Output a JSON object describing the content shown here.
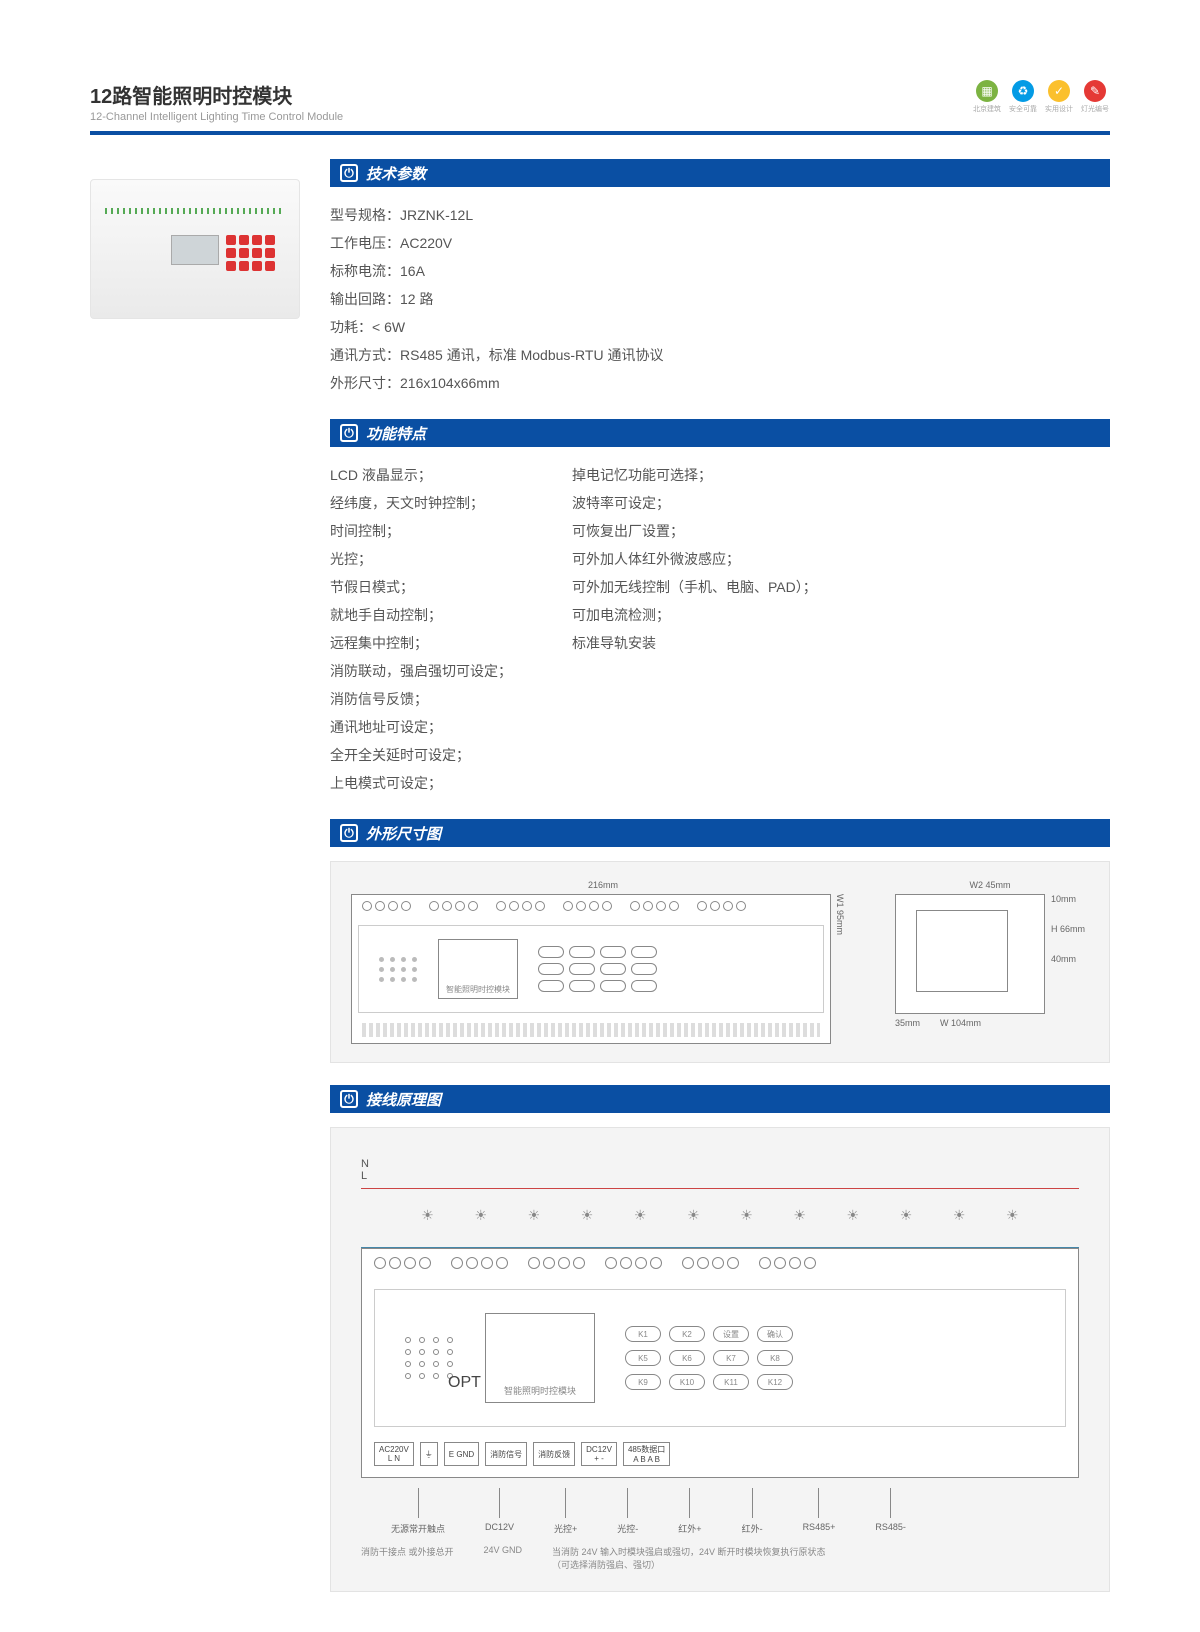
{
  "header": {
    "title_cn": "12路智能照明时控模块",
    "title_en": "12-Channel Intelligent Lighting Time Control Module",
    "badges": [
      {
        "color": "#7cb342",
        "icon": "▦",
        "label": "北京建筑"
      },
      {
        "color": "#039be5",
        "icon": "♻",
        "label": "安全可靠"
      },
      {
        "color": "#fbc02d",
        "icon": "✓",
        "label": "实用设计"
      },
      {
        "color": "#e53935",
        "icon": "✎",
        "label": "灯光编号"
      }
    ]
  },
  "sections": {
    "spec_title": "技术参数",
    "feat_title": "功能特点",
    "dim_title": "外形尺寸图",
    "wiring_title": "接线原理图"
  },
  "specs": [
    {
      "k": "型号规格：",
      "v": "JRZNK-12L"
    },
    {
      "k": "工作电压：",
      "v": "AC220V"
    },
    {
      "k": "标称电流：",
      "v": "16A"
    },
    {
      "k": "输出回路：",
      "v": "12 路"
    },
    {
      "k": "功耗：",
      "v": "< 6W"
    },
    {
      "k": "通讯方式：",
      "v": "RS485 通讯，标准 Modbus-RTU 通讯协议"
    },
    {
      "k": "外形尺寸：",
      "v": "216x104x66mm"
    }
  ],
  "features_left": [
    "LCD 液晶显示；",
    "经纬度，天文时钟控制；",
    "时间控制；",
    "光控；",
    "节假日模式；",
    "就地手自动控制；",
    "远程集中控制；",
    "消防联动，强启强切可设定；",
    "消防信号反馈；",
    "通讯地址可设定；",
    "全开全关延时可设定；",
    "上电模式可设定；"
  ],
  "features_right": [
    "掉电记忆功能可选择；",
    "波特率可设定；",
    "可恢复出厂设置；",
    "可外加人体红外微波感应；",
    "可外加无线控制（手机、电脑、PAD）；",
    "可加电流检测；",
    "标准导轨安装"
  ],
  "dimensions": {
    "width": "216mm",
    "height_side": "W1  95mm",
    "w2": "W2 45mm",
    "h": "H  66mm",
    "d1": "10mm",
    "d2": "40mm",
    "rail": "35mm",
    "depth": "W  104mm",
    "lcd_label": "智能照明时控模块"
  },
  "wiring": {
    "n": "N",
    "l": "L",
    "lcd_label": "智能照明时控模块",
    "key_labels": [
      "K1",
      "K2",
      "设置",
      "确认",
      "K5",
      "K6",
      "K7",
      "K8",
      "K9",
      "K10",
      "K11",
      "K12"
    ],
    "bottom_blocks": [
      {
        "t": "AC220V",
        "s": "L  N"
      },
      {
        "t": "⏚",
        "s": ""
      },
      {
        "t": "E GND",
        "s": ""
      },
      {
        "t": "消防信号",
        "s": ""
      },
      {
        "t": "消防反馈",
        "s": ""
      },
      {
        "t": "DC12V",
        "s": "+ -"
      },
      {
        "t": "485数据口",
        "s": "A B A B"
      }
    ],
    "tail_labels": [
      "无源常开触点",
      "DC12V",
      "光控+",
      "光控-",
      "红外+",
      "红外-",
      "RS485+",
      "RS485-"
    ],
    "note_left": "消防干接点 或外接总开",
    "note_mid": "24V GND",
    "note_right": "当消防 24V 输入时模块强启或强切，24V 断开时模块恢复执行原状态（可选择消防强启、强切）"
  }
}
